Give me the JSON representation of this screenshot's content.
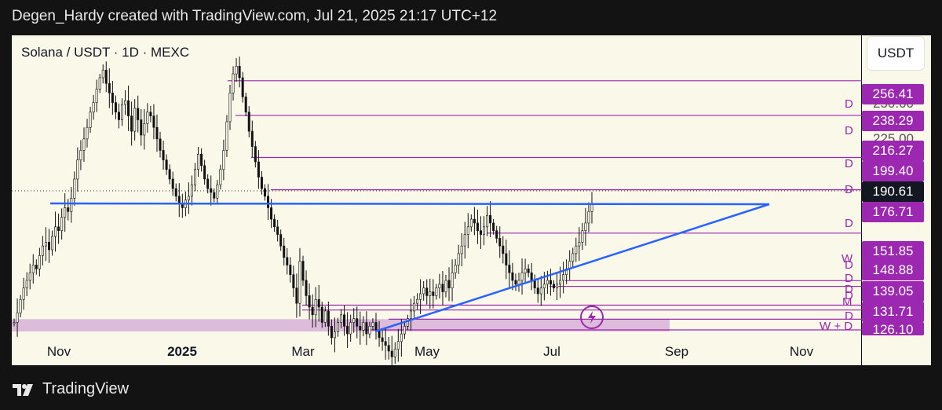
{
  "header": {
    "text": "Degen_Hardy created with TradingView.com, Jul 21, 2025 21:17 UTC+12"
  },
  "chart_data": {
    "type": "candlestick",
    "title": "Solana / USDT · 1D · MEXC",
    "currency_button": "USDT",
    "current_price": "190.61",
    "x_ticks": [
      {
        "label": "Nov",
        "bold": false
      },
      {
        "label": "2025",
        "bold": true
      },
      {
        "label": "Mar",
        "bold": false
      },
      {
        "label": "May",
        "bold": false
      },
      {
        "label": "Jul",
        "bold": false
      },
      {
        "label": "Sep",
        "bold": false
      },
      {
        "label": "Nov",
        "bold": false
      }
    ],
    "price_levels": [
      {
        "value": "256.41",
        "label": "D"
      },
      {
        "value": "238.29",
        "label": "D"
      },
      {
        "value": "216.27",
        "label": "D"
      },
      {
        "value": "199.40",
        "label": "D"
      },
      {
        "value": "176.71",
        "label": "D"
      },
      {
        "value": "151.85",
        "label": "W"
      },
      {
        "value": "148.88",
        "label": "D"
      },
      {
        "value": "139.05",
        "label": "D"
      },
      {
        "value": "131.71",
        "label": "M"
      },
      {
        "value": "126.10",
        "label": "W + D"
      }
    ],
    "extra_level_labels": [
      "D",
      "D",
      "D"
    ],
    "partially_hidden_ticks": [
      "250.00",
      "225.00"
    ],
    "support_zone": {
      "from": 126.1,
      "to": 131.7
    },
    "trendlines": [
      "horizontal resistance ~186",
      "ascending support from Apr low"
    ],
    "closes": [
      130,
      135,
      142,
      148,
      152,
      156,
      160,
      158,
      165,
      170,
      172,
      168,
      175,
      180,
      178,
      185,
      190,
      188,
      195,
      205,
      215,
      220,
      226,
      232,
      240,
      245,
      252,
      258,
      262,
      255,
      250,
      245,
      240,
      236,
      244,
      246,
      238,
      230,
      242,
      236,
      228,
      234,
      240,
      238,
      232,
      226,
      220,
      215,
      210,
      205,
      200,
      196,
      192,
      190,
      194,
      196,
      202,
      210,
      218,
      212,
      205,
      200,
      198,
      195,
      202,
      210,
      220,
      235,
      250,
      260,
      264,
      258,
      248,
      240,
      230,
      222,
      214,
      206,
      200,
      196,
      190,
      184,
      180,
      176,
      170,
      164,
      160,
      155,
      148,
      140,
      162,
      152,
      144,
      138,
      134,
      142,
      138,
      130,
      136,
      128,
      122,
      125,
      130,
      134,
      128,
      124,
      130,
      132,
      128,
      126,
      130,
      124,
      128,
      130,
      126,
      122,
      120,
      118,
      115,
      112,
      116,
      120,
      124,
      128,
      132,
      136,
      140,
      142,
      145,
      148,
      144,
      146,
      144,
      148,
      150,
      146,
      152,
      148,
      156,
      160,
      166,
      170,
      176,
      180,
      184,
      182,
      178,
      176,
      180,
      186,
      182,
      178,
      174,
      170,
      166,
      160,
      156,
      152,
      150,
      152,
      156,
      158,
      156,
      152,
      148,
      145,
      148,
      150,
      152,
      150,
      148,
      150,
      152,
      155,
      158,
      162,
      166,
      170,
      172,
      178,
      182,
      188,
      192
    ]
  }
}
